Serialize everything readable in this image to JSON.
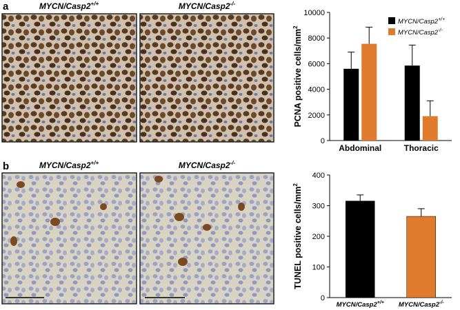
{
  "panel_labels": [
    "a",
    "b"
  ],
  "image_titles": [
    {
      "title": "MYCN/Casp2",
      "superscript": "+/+"
    },
    {
      "title": "MYCN/Casp2",
      "superscript": "-/-"
    },
    {
      "title": "MYCN/Casp2",
      "superscript": "+/+"
    },
    {
      "title": "MYCN/Casp2",
      "superscript": "-/-"
    }
  ],
  "chart_data": [
    {
      "type": "bar",
      "ylabel": "PCNA positive cells/mm",
      "ylabel_superscript": "2",
      "categories": [
        "Abdominal",
        "Thoracic"
      ],
      "series": [
        {
          "name": "MYCN/Casp2",
          "superscript": "+/+",
          "color": "#000000",
          "values": [
            5600,
            5850
          ],
          "errors": [
            1300,
            1600
          ]
        },
        {
          "name": "MYCN/Casp2",
          "superscript": "-/-",
          "color": "#e07b2e",
          "values": [
            7550,
            1900
          ],
          "errors": [
            1300,
            1200
          ]
        }
      ],
      "ylim": [
        0,
        10000
      ],
      "yticks": [
        0,
        2000,
        4000,
        6000,
        8000,
        10000
      ],
      "legend": "upper right"
    },
    {
      "type": "bar",
      "ylabel": "TUNEL positive cells/mm",
      "ylabel_superscript": "2",
      "categories": [
        "MYCN/Casp2",
        "MYCN/Casp2"
      ],
      "category_superscripts": [
        "+/+",
        "-/-"
      ],
      "values": [
        315,
        265
      ],
      "errors": [
        20,
        25
      ],
      "colors": [
        "#000000",
        "#e07b2e"
      ],
      "ylim": [
        0,
        400
      ],
      "yticks": [
        0,
        100,
        200,
        300,
        400
      ]
    }
  ]
}
